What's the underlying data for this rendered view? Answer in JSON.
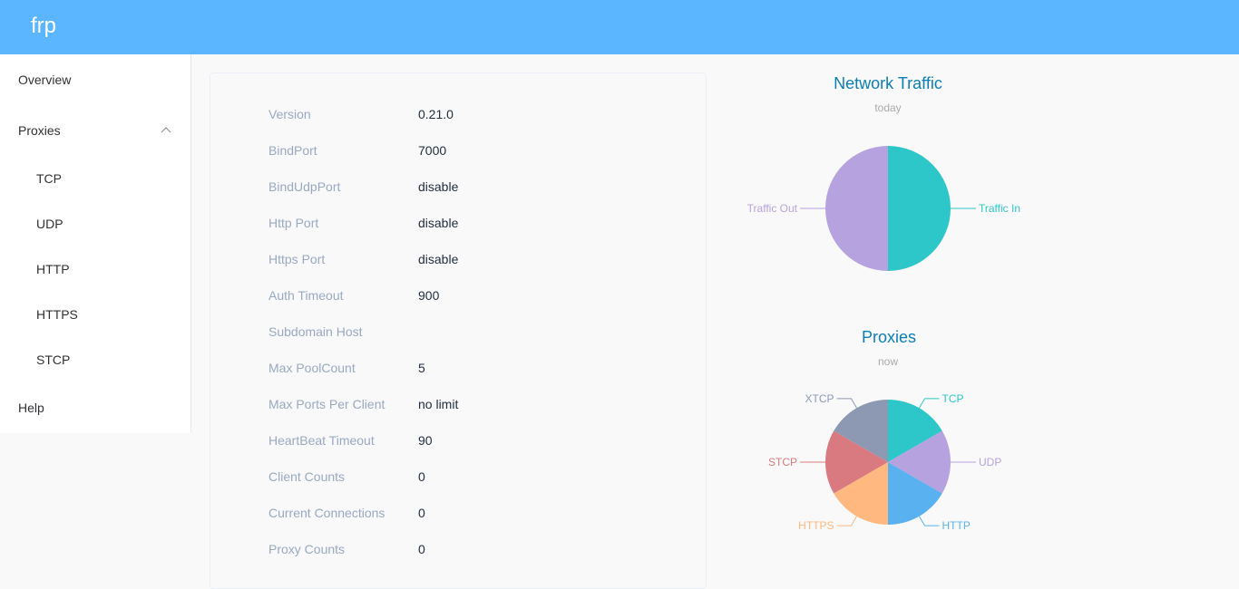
{
  "header": {
    "brand": "frp"
  },
  "sidebar": {
    "items": [
      {
        "label": "Overview"
      },
      {
        "label": "Proxies",
        "expanded": true,
        "children": [
          {
            "label": "TCP"
          },
          {
            "label": "UDP"
          },
          {
            "label": "HTTP"
          },
          {
            "label": "HTTPS"
          },
          {
            "label": "STCP"
          }
        ]
      },
      {
        "label": "Help"
      }
    ],
    "chevron_icon": "chevron-up-icon"
  },
  "server_info": {
    "rows": [
      {
        "label": "Version",
        "value": "0.21.0"
      },
      {
        "label": "BindPort",
        "value": "7000"
      },
      {
        "label": "BindUdpPort",
        "value": "disable"
      },
      {
        "label": "Http Port",
        "value": "disable"
      },
      {
        "label": "Https Port",
        "value": "disable"
      },
      {
        "label": "Auth Timeout",
        "value": "900"
      },
      {
        "label": "Subdomain Host",
        "value": ""
      },
      {
        "label": "Max PoolCount",
        "value": "5"
      },
      {
        "label": "Max Ports Per Client",
        "value": "no limit"
      },
      {
        "label": "HeartBeat Timeout",
        "value": "90"
      },
      {
        "label": "Client Counts",
        "value": "0"
      },
      {
        "label": "Current Connections",
        "value": "0"
      },
      {
        "label": "Proxy Counts",
        "value": "0"
      }
    ]
  },
  "chart_data": [
    {
      "type": "pie",
      "title": "Network Traffic",
      "subtitle": "today",
      "slices": [
        {
          "name": "Traffic In",
          "value": 1,
          "color": "#2ec7c9"
        },
        {
          "name": "Traffic Out",
          "value": 1,
          "color": "#b6a2de"
        }
      ]
    },
    {
      "type": "pie",
      "title": "Proxies",
      "subtitle": "now",
      "slices": [
        {
          "name": "TCP",
          "value": 1,
          "color": "#2ec7c9"
        },
        {
          "name": "UDP",
          "value": 1,
          "color": "#b6a2de"
        },
        {
          "name": "HTTP",
          "value": 1,
          "color": "#5ab1ef"
        },
        {
          "name": "HTTPS",
          "value": 1,
          "color": "#ffb980"
        },
        {
          "name": "STCP",
          "value": 1,
          "color": "#d87a80"
        },
        {
          "name": "XTCP",
          "value": 1,
          "color": "#8d98b3"
        }
      ]
    }
  ]
}
